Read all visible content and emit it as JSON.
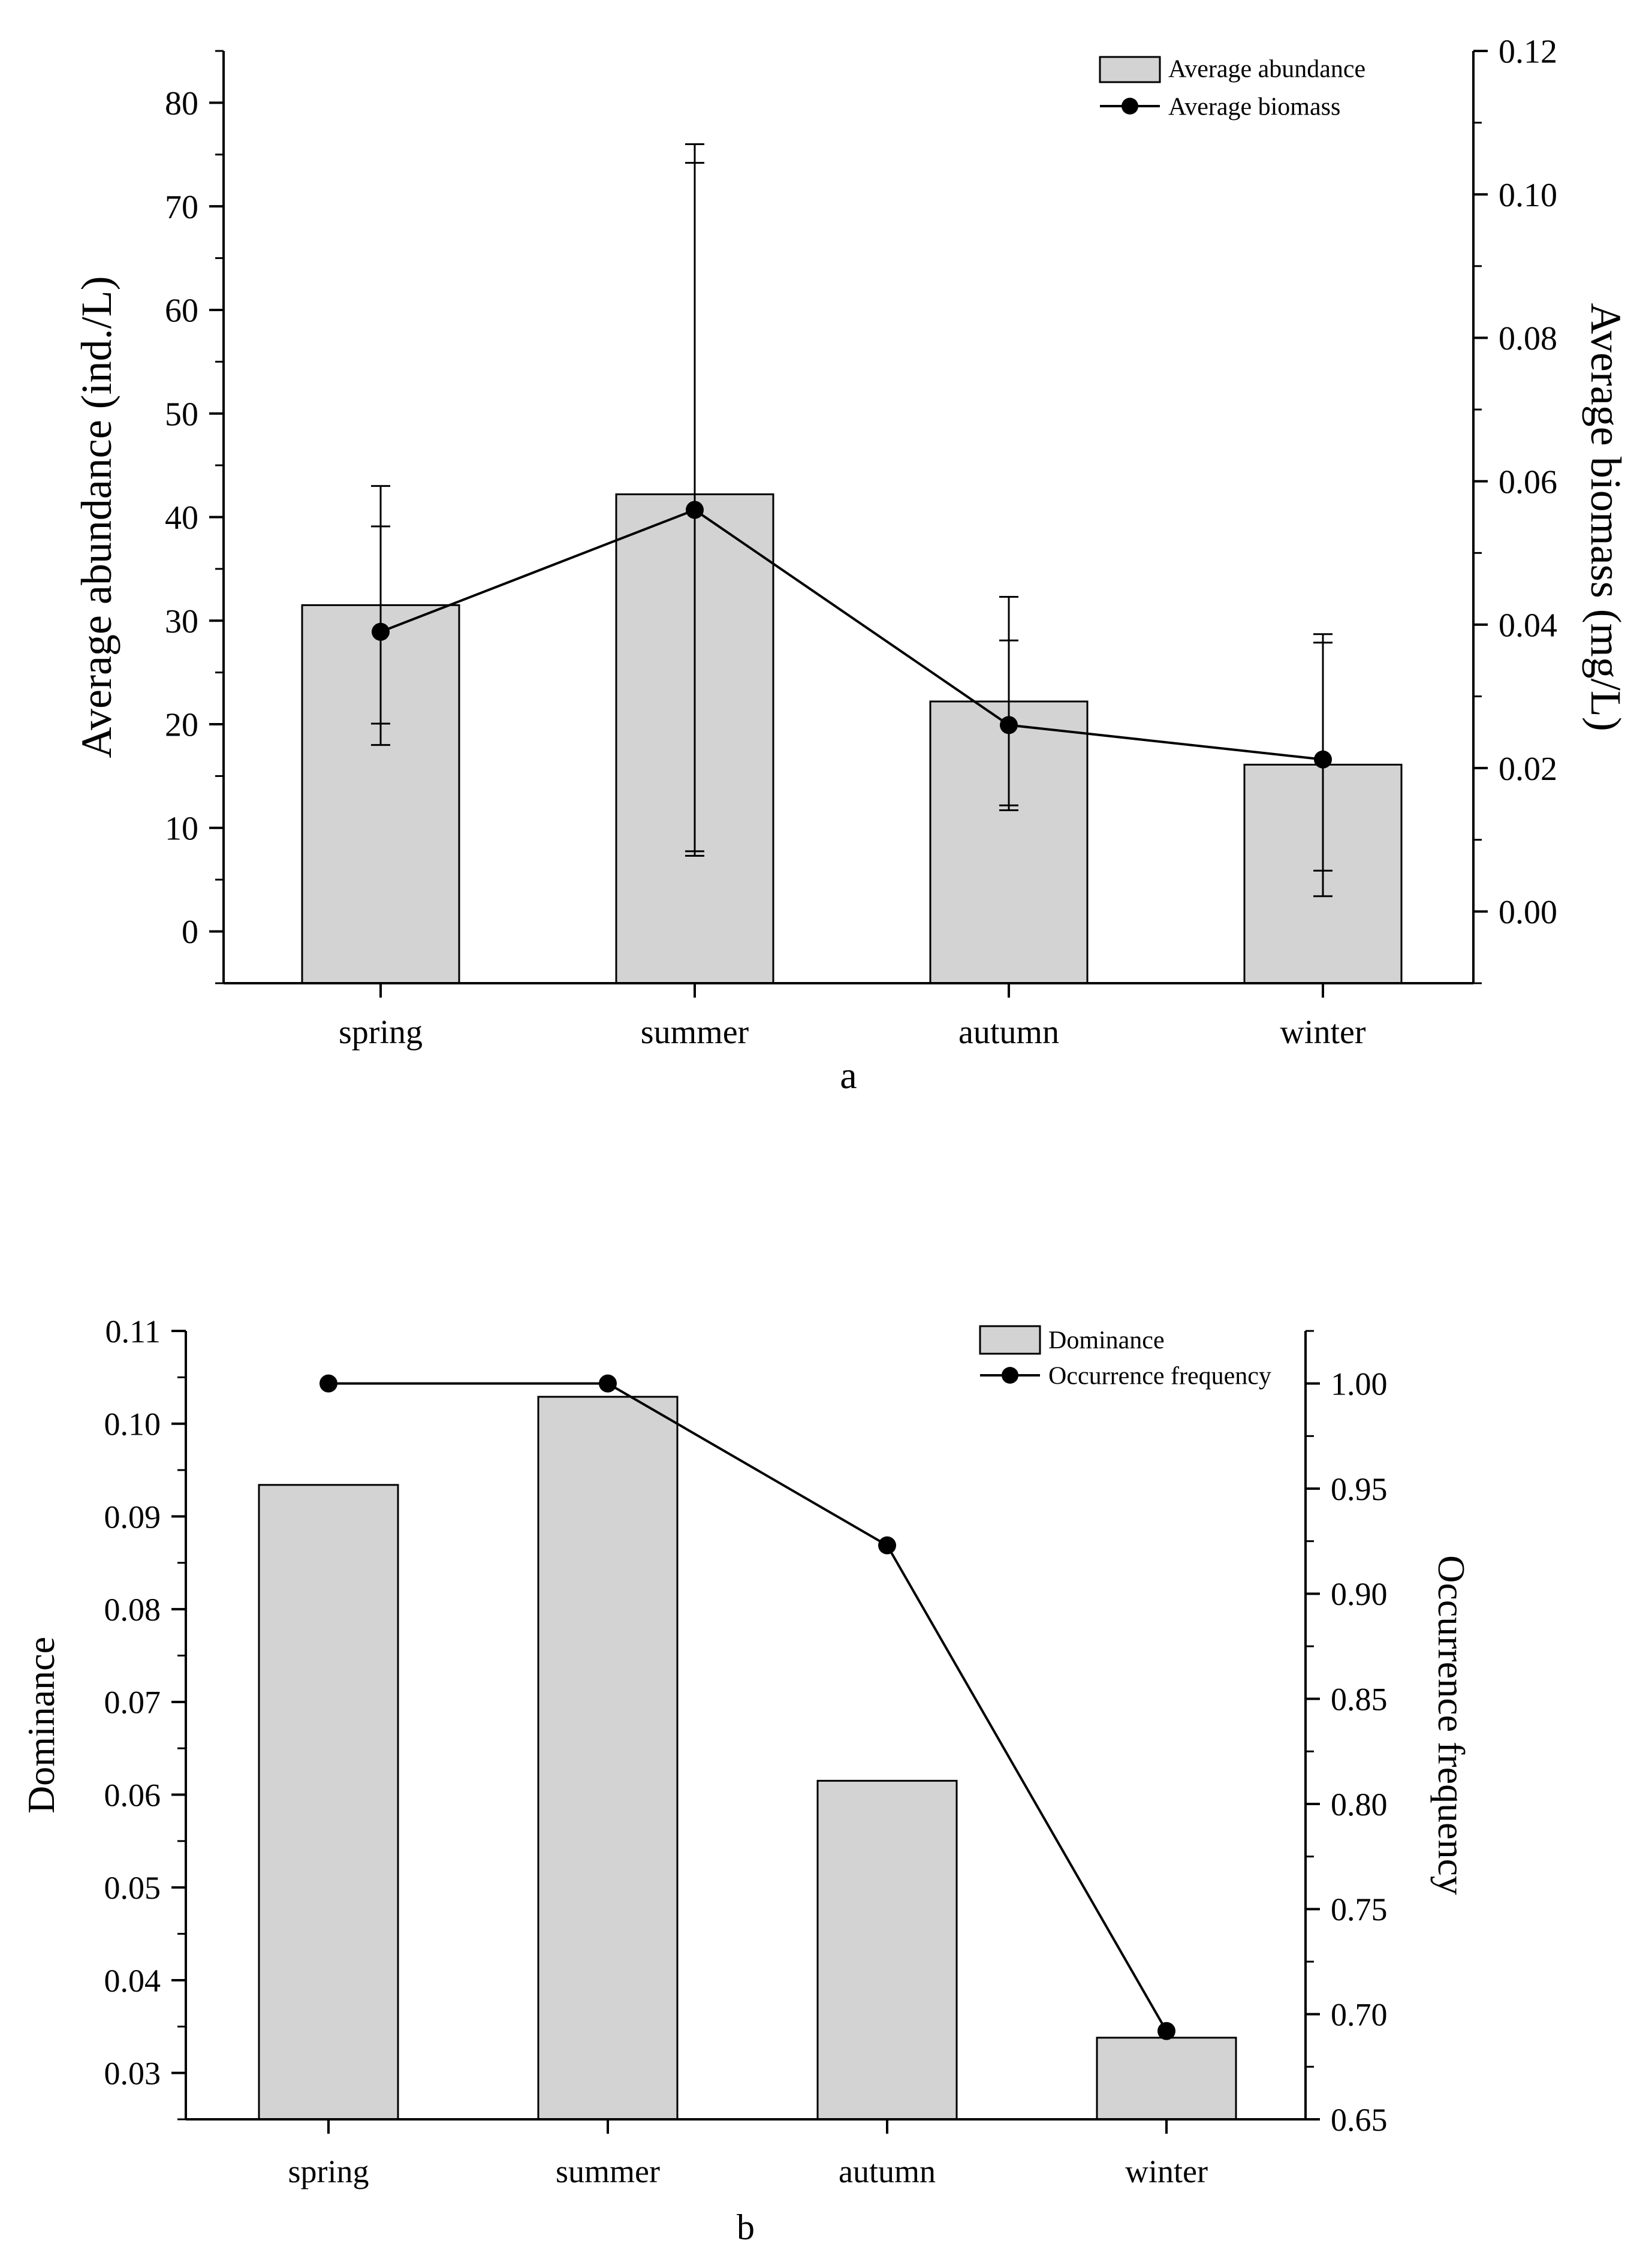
{
  "chart_data": [
    {
      "panel": "a",
      "type": "bar+line",
      "categories": [
        "spring",
        "summer",
        "autumn",
        "winter"
      ],
      "series": [
        {
          "name": "Average abundance",
          "kind": "bar",
          "axis": "left",
          "values": [
            31.5,
            42.2,
            22.2,
            16.1
          ],
          "error_low": [
            18.0,
            7.3,
            11.7,
            3.4
          ],
          "error_high": [
            43.0,
            76.0,
            32.3,
            28.7
          ]
        },
        {
          "name": "Average biomass",
          "kind": "line",
          "axis": "right",
          "values": [
            0.039,
            0.056,
            0.026,
            0.0212
          ],
          "error_low": [
            0.0262,
            0.0084,
            0.0148,
            0.0057
          ],
          "error_high": [
            0.0537,
            0.1044,
            0.0378,
            0.0375
          ]
        }
      ],
      "ylabel": "Average abundance (ind./L)",
      "y2label": "Average biomass (mg/L)",
      "xlabel": "a",
      "ylim": [
        -5,
        85
      ],
      "y2lim": [
        -0.01,
        0.12
      ],
      "yticks": [
        "0",
        "10",
        "20",
        "30",
        "40",
        "50",
        "60",
        "70",
        "80"
      ],
      "y2ticks": [
        "0.00",
        "0.02",
        "0.04",
        "0.06",
        "0.08",
        "0.10",
        "0.12"
      ],
      "bar_color": "#d3d3d3",
      "grid": false,
      "legend_position": "top-right"
    },
    {
      "panel": "b",
      "type": "bar+line",
      "categories": [
        "spring",
        "summer",
        "autumn",
        "winter"
      ],
      "series": [
        {
          "name": "Dominance",
          "kind": "bar",
          "axis": "left",
          "values": [
            0.0934,
            0.1029,
            0.0615,
            0.0338
          ]
        },
        {
          "name": "Occurrence frequency",
          "kind": "line",
          "axis": "right",
          "values": [
            1.0,
            1.0,
            0.923,
            0.692
          ]
        }
      ],
      "ylabel": "Dominance",
      "y2label": "Occurrence frequency",
      "xlabel": "b",
      "ylim": [
        0.025,
        0.11
      ],
      "y2lim": [
        0.65,
        1.025
      ],
      "yticks": [
        "0.03",
        "0.04",
        "0.05",
        "0.06",
        "0.07",
        "0.08",
        "0.09",
        "0.10",
        "0.11"
      ],
      "y2ticks": [
        "0.65",
        "0.70",
        "0.75",
        "0.80",
        "0.85",
        "0.90",
        "0.95",
        "1.00"
      ],
      "bar_color": "#d3d3d3",
      "grid": false,
      "legend_position": "top-right"
    }
  ]
}
